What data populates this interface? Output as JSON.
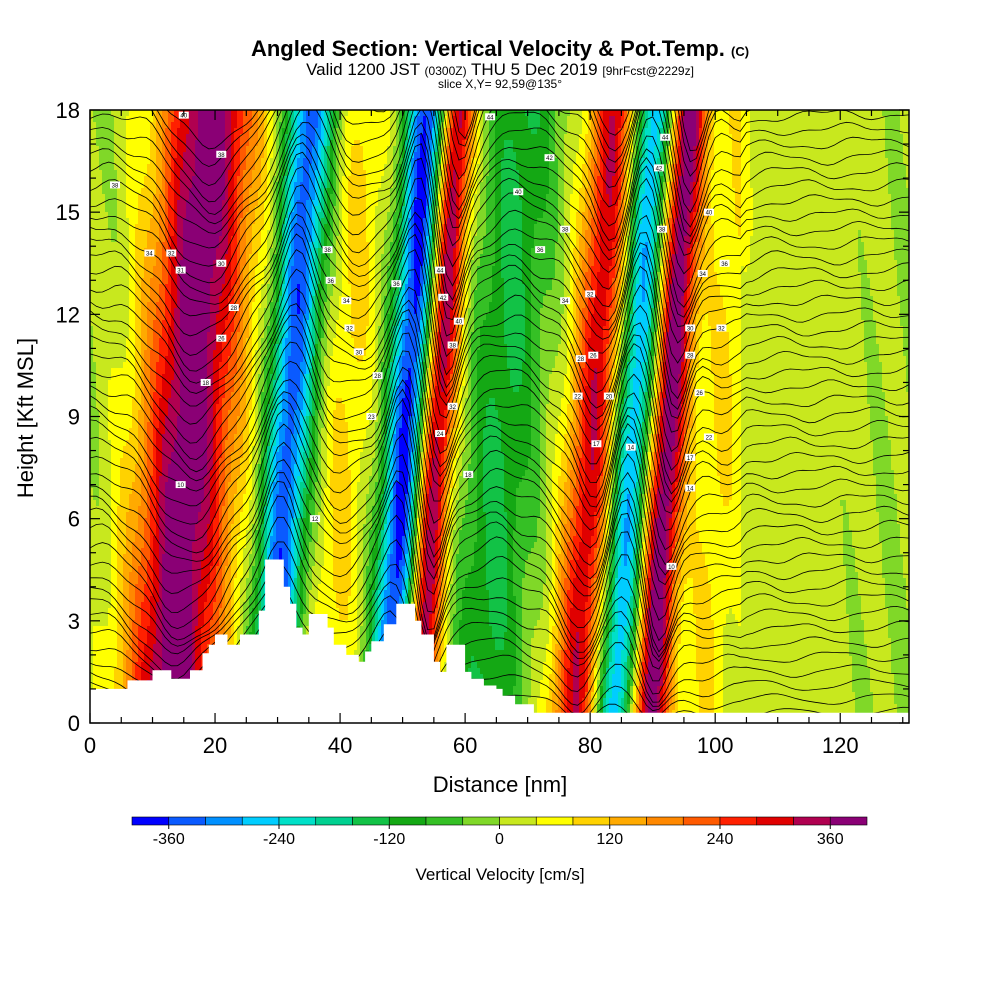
{
  "title": {
    "main": "Angled Section: Vertical Velocity & Pot.Temp.",
    "main_suffix": "(C)",
    "valid_prefix": "Valid 1200 JST",
    "valid_utc": "(0300Z)",
    "valid_date": "THU 5 Dec 2019",
    "valid_fcst": "[9hrFcst@2229z]",
    "slice": "slice X,Y= 92,59@135°"
  },
  "chart_data": {
    "type": "heatmap",
    "title": "Angled Section: Vertical Velocity & Pot.Temp.",
    "xlabel": "Distance [nm]",
    "ylabel": "Height [Kft MSL]",
    "xlim": [
      0,
      131
    ],
    "ylim": [
      0,
      18
    ],
    "x_ticks": [
      0,
      20,
      40,
      60,
      80,
      100,
      120
    ],
    "y_ticks": [
      0,
      3,
      6,
      9,
      12,
      15,
      18
    ],
    "colorbar": {
      "label": "Vertical Velocity [cm/s]",
      "range": [
        -400,
        400
      ],
      "step": 40,
      "tick_values": [
        -360,
        -240,
        -120,
        0,
        120,
        240,
        360
      ],
      "tick_labels": [
        "-360",
        "-240",
        "-120",
        "0",
        "120",
        "240",
        "360"
      ],
      "colors": [
        "#0000ff",
        "#0a5aff",
        "#0090ff",
        "#00cdff",
        "#00e0c8",
        "#00d090",
        "#12c246",
        "#14a814",
        "#35c025",
        "#80d828",
        "#c8e81e",
        "#ffff00",
        "#ffd200",
        "#ffaa00",
        "#ff8800",
        "#ff5a00",
        "#ff2000",
        "#e00000",
        "#b00050",
        "#8a0075"
      ]
    },
    "velocity_columns": [
      {
        "x": 16,
        "w": 400,
        "sigma": 5.5
      },
      {
        "x": 32,
        "w": -350,
        "sigma": 2.6
      },
      {
        "x": 41,
        "w": 90,
        "sigma": 3.0
      },
      {
        "x": 51,
        "w": -400,
        "sigma": 2.4
      },
      {
        "x": 55.5,
        "w": 400,
        "sigma": 2.0
      },
      {
        "x": 66,
        "w": -130,
        "sigma": 4.0
      },
      {
        "x": 81,
        "w": 330,
        "sigma": 3.0
      },
      {
        "x": 87,
        "w": -330,
        "sigma": 2.6
      },
      {
        "x": 92.5,
        "w": 420,
        "sigma": 2.2
      },
      {
        "x": 101,
        "w": 80,
        "sigma": 3.0
      },
      {
        "x": 115,
        "w": 30,
        "sigma": 6.0
      }
    ],
    "terrain_height_kft": [
      [
        0,
        1.0
      ],
      [
        6,
        1.0
      ],
      [
        6,
        1.25
      ],
      [
        10,
        1.25
      ],
      [
        10,
        1.55
      ],
      [
        13,
        1.55
      ],
      [
        13,
        1.3
      ],
      [
        16,
        1.3
      ],
      [
        16,
        1.55
      ],
      [
        18,
        1.55
      ],
      [
        18,
        2.05
      ],
      [
        19,
        2.05
      ],
      [
        19,
        2.3
      ],
      [
        20,
        2.3
      ],
      [
        20,
        2.6
      ],
      [
        22,
        2.6
      ],
      [
        22,
        2.3
      ],
      [
        24,
        2.3
      ],
      [
        24,
        2.6
      ],
      [
        27,
        2.6
      ],
      [
        27,
        3.3
      ],
      [
        28,
        3.3
      ],
      [
        28,
        4.8
      ],
      [
        31,
        4.8
      ],
      [
        31,
        4.0
      ],
      [
        32,
        4.0
      ],
      [
        32,
        3.5
      ],
      [
        33,
        3.5
      ],
      [
        33,
        2.8
      ],
      [
        34,
        2.8
      ],
      [
        34,
        2.6
      ],
      [
        35,
        2.6
      ],
      [
        35,
        3.2
      ],
      [
        38,
        3.2
      ],
      [
        38,
        2.8
      ],
      [
        39,
        2.8
      ],
      [
        39,
        2.3
      ],
      [
        41,
        2.3
      ],
      [
        41,
        2.0
      ],
      [
        43,
        2.0
      ],
      [
        43,
        1.8
      ],
      [
        44,
        1.8
      ],
      [
        44,
        2.1
      ],
      [
        45,
        2.1
      ],
      [
        45,
        2.4
      ],
      [
        47,
        2.4
      ],
      [
        47,
        2.9
      ],
      [
        49,
        2.9
      ],
      [
        49,
        3.5
      ],
      [
        52,
        3.5
      ],
      [
        52,
        3.0
      ],
      [
        53,
        3.0
      ],
      [
        53,
        2.6
      ],
      [
        55,
        2.6
      ],
      [
        55,
        1.8
      ],
      [
        56,
        1.8
      ],
      [
        56,
        1.5
      ],
      [
        57,
        1.5
      ],
      [
        57,
        2.3
      ],
      [
        60,
        2.3
      ],
      [
        60,
        1.5
      ],
      [
        61,
        1.5
      ],
      [
        61,
        1.3
      ],
      [
        63,
        1.3
      ],
      [
        63,
        1.1
      ],
      [
        65,
        1.1
      ],
      [
        65,
        1.0
      ],
      [
        66,
        1.0
      ],
      [
        66,
        0.8
      ],
      [
        68,
        0.8
      ],
      [
        68,
        0.55
      ],
      [
        71,
        0.55
      ],
      [
        71,
        0.3
      ],
      [
        131,
        0.3
      ]
    ],
    "theta_contour_labels": [
      {
        "x": 15,
        "y": 17.85,
        "label": "40"
      },
      {
        "x": 4,
        "y": 15.8,
        "label": "38"
      },
      {
        "x": 21,
        "y": 16.7,
        "label": "38"
      },
      {
        "x": 9.5,
        "y": 13.8,
        "label": "34"
      },
      {
        "x": 13,
        "y": 13.8,
        "label": "32"
      },
      {
        "x": 14.5,
        "y": 13.3,
        "label": "31"
      },
      {
        "x": 21,
        "y": 13.5,
        "label": "30"
      },
      {
        "x": 23,
        "y": 12.2,
        "label": "28"
      },
      {
        "x": 21,
        "y": 11.3,
        "label": "26"
      },
      {
        "x": 18.5,
        "y": 10.0,
        "label": "18"
      },
      {
        "x": 14.5,
        "y": 7.0,
        "label": "10"
      },
      {
        "x": 38,
        "y": 13.9,
        "label": "38"
      },
      {
        "x": 38.5,
        "y": 13.0,
        "label": "36"
      },
      {
        "x": 41,
        "y": 12.4,
        "label": "34"
      },
      {
        "x": 41.5,
        "y": 11.6,
        "label": "32"
      },
      {
        "x": 43,
        "y": 10.9,
        "label": "30"
      },
      {
        "x": 46,
        "y": 10.2,
        "label": "28"
      },
      {
        "x": 49,
        "y": 12.9,
        "label": "36"
      },
      {
        "x": 45,
        "y": 9.0,
        "label": "23"
      },
      {
        "x": 36,
        "y": 6.0,
        "label": "12"
      },
      {
        "x": 56,
        "y": 13.3,
        "label": "44"
      },
      {
        "x": 56.5,
        "y": 12.5,
        "label": "42"
      },
      {
        "x": 59,
        "y": 11.8,
        "label": "40"
      },
      {
        "x": 58,
        "y": 11.1,
        "label": "38"
      },
      {
        "x": 58,
        "y": 9.3,
        "label": "32"
      },
      {
        "x": 56,
        "y": 8.5,
        "label": "24"
      },
      {
        "x": 60.5,
        "y": 7.3,
        "label": "18"
      },
      {
        "x": 64,
        "y": 17.8,
        "label": "44"
      },
      {
        "x": 73.5,
        "y": 16.6,
        "label": "42"
      },
      {
        "x": 68.5,
        "y": 15.6,
        "label": "40"
      },
      {
        "x": 76,
        "y": 14.5,
        "label": "38"
      },
      {
        "x": 72,
        "y": 13.9,
        "label": "36"
      },
      {
        "x": 76,
        "y": 12.4,
        "label": "34"
      },
      {
        "x": 80,
        "y": 12.6,
        "label": "32"
      },
      {
        "x": 78.5,
        "y": 10.7,
        "label": "28"
      },
      {
        "x": 80.5,
        "y": 10.8,
        "label": "26"
      },
      {
        "x": 78,
        "y": 9.6,
        "label": "22"
      },
      {
        "x": 83,
        "y": 9.6,
        "label": "20"
      },
      {
        "x": 81,
        "y": 8.2,
        "label": "17"
      },
      {
        "x": 86.5,
        "y": 8.1,
        "label": "14"
      },
      {
        "x": 92,
        "y": 17.2,
        "label": "44"
      },
      {
        "x": 91,
        "y": 16.3,
        "label": "42"
      },
      {
        "x": 99,
        "y": 15.0,
        "label": "40"
      },
      {
        "x": 91.5,
        "y": 14.5,
        "label": "38"
      },
      {
        "x": 101.5,
        "y": 13.5,
        "label": "36"
      },
      {
        "x": 98,
        "y": 13.2,
        "label": "34"
      },
      {
        "x": 101,
        "y": 11.6,
        "label": "32"
      },
      {
        "x": 96,
        "y": 11.6,
        "label": "30"
      },
      {
        "x": 96,
        "y": 10.8,
        "label": "28"
      },
      {
        "x": 97.5,
        "y": 9.7,
        "label": "26"
      },
      {
        "x": 99,
        "y": 8.4,
        "label": "22"
      },
      {
        "x": 96,
        "y": 7.8,
        "label": "17"
      },
      {
        "x": 96,
        "y": 6.9,
        "label": "14"
      },
      {
        "x": 93,
        "y": 4.6,
        "label": "10"
      }
    ]
  }
}
